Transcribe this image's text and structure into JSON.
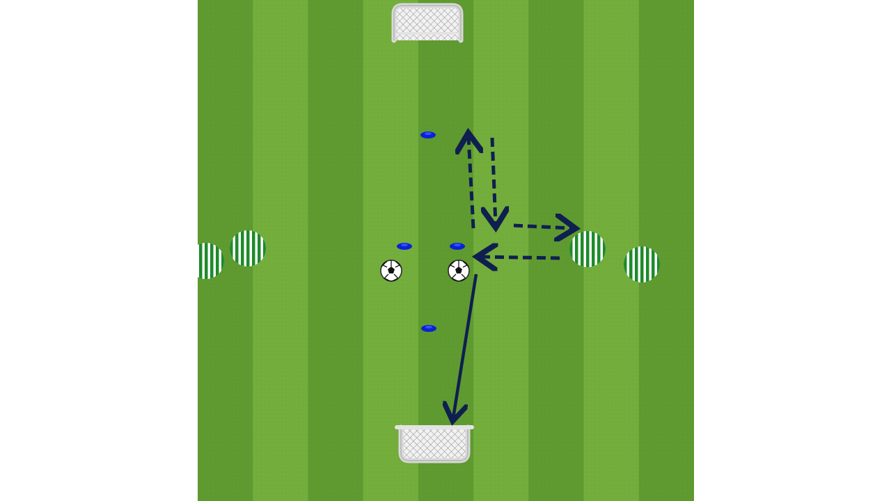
{
  "diagram": {
    "kind": "soccer training drill",
    "pitch": {
      "stripe_light": "#73ad3c",
      "stripe_dark": "#5e9a2f",
      "stripe_count": 9
    },
    "colors": {
      "arrow": "#0f1f4f",
      "cone": "#0a22d6",
      "player_stripe": "#1e8a2a",
      "player_base": "#ffffff",
      "goal_frame": "#e6e6e6"
    },
    "elements": {
      "goals": [
        "top-goal",
        "bottom-goal"
      ],
      "balls": [
        "ball-left",
        "ball-right"
      ],
      "cones": [
        "cone-top",
        "cone-mid-left",
        "cone-mid-right",
        "cone-bottom"
      ],
      "players": [
        "player-far-left",
        "player-left",
        "player-right",
        "player-far-right"
      ],
      "paths": [
        {
          "name": "run-up-arrow",
          "style": "dashed"
        },
        {
          "name": "run-down-arrow",
          "style": "dashed"
        },
        {
          "name": "pass-right-arrow",
          "style": "dashed"
        },
        {
          "name": "pass-left-arrow",
          "style": "dashed"
        },
        {
          "name": "shot-arrow",
          "style": "solid"
        }
      ]
    }
  }
}
